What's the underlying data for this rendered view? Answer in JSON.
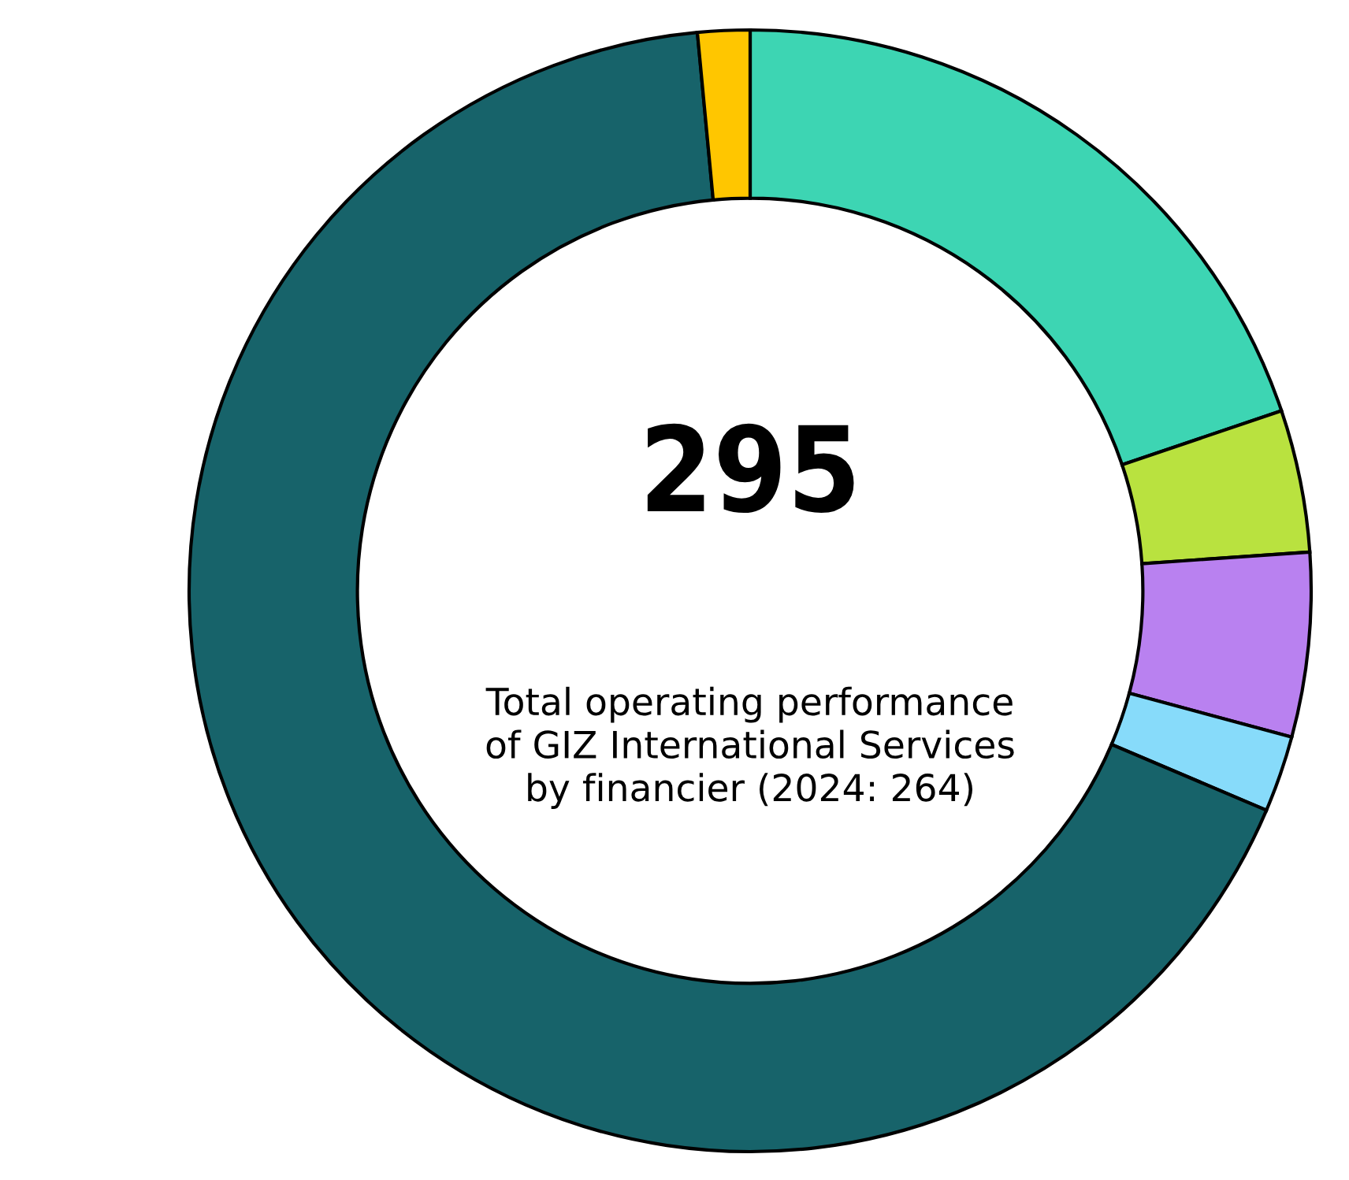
{
  "chart_data": {
    "type": "donut",
    "title": "295",
    "subtitle": "Total operating performance\nof GIZ International Services\nby financier (2024: 264)",
    "categories": [
      null,
      null,
      null,
      null,
      null,
      null
    ],
    "values": [
      19.8,
      4.1,
      5.3,
      2.2,
      67.1,
      1.5
    ],
    "colors": [
      "#3dd5b3",
      "#b9e23f",
      "#b981f0",
      "#87dbfa",
      "#17636a",
      "#ffc600"
    ]
  }
}
